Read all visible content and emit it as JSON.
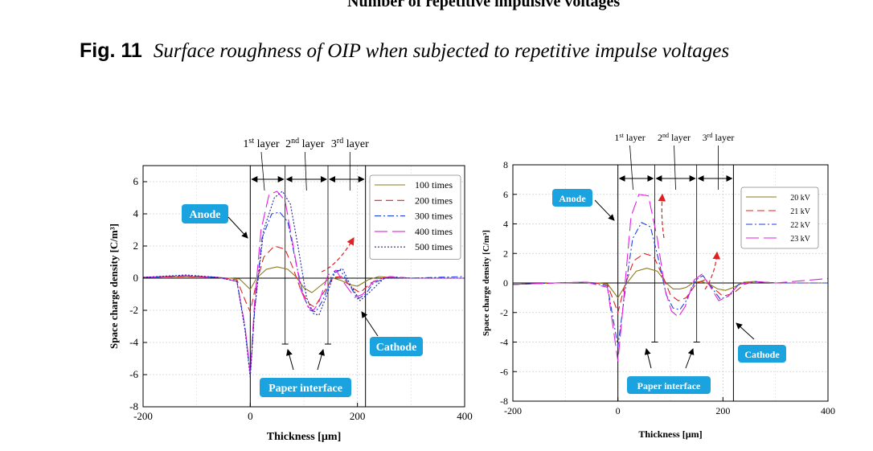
{
  "top_text": "Number of repetitive impulsive voltages",
  "caption": {
    "figure_label": "Fig. 11",
    "text": "Surface roughness of OIP when subjected to repetitive impulse voltages"
  },
  "chart_data": [
    {
      "type": "line",
      "xlabel": "Thickness [µm]",
      "ylabel": "Space charge density [C/m³]",
      "xlim": [
        -200,
        400
      ],
      "ylim": [
        -8,
        7
      ],
      "xticks": [
        -200,
        0,
        200,
        400
      ],
      "yticks": [
        -8,
        -6,
        -4,
        -2,
        0,
        2,
        4,
        6
      ],
      "grid": true,
      "legend_position": "top-right",
      "series": [
        {
          "name": "100 times",
          "color": "#8a7a1c",
          "dash": "",
          "x": [
            -200,
            -120,
            -60,
            -20,
            0,
            12,
            30,
            50,
            70,
            85,
            100,
            115,
            130,
            150,
            170,
            185,
            200,
            220,
            240,
            260,
            300,
            400
          ],
          "y": [
            0.05,
            0.1,
            0.05,
            -0.05,
            -0.7,
            0.0,
            0.55,
            0.7,
            0.55,
            0.1,
            -0.6,
            -0.9,
            -0.5,
            0.05,
            -0.15,
            -0.4,
            -0.5,
            -0.1,
            0.1,
            0.05,
            0,
            0
          ]
        },
        {
          "name": "200 times",
          "color": "#e02020",
          "dash": "9,5",
          "x": [
            -200,
            -120,
            -60,
            -25,
            -8,
            0,
            10,
            25,
            45,
            65,
            80,
            95,
            110,
            120,
            135,
            155,
            170,
            190,
            205,
            225,
            250,
            300,
            400
          ],
          "y": [
            0.05,
            0.1,
            0.05,
            -0.1,
            -1.5,
            -2.1,
            -0.5,
            1.3,
            2.0,
            1.8,
            0.6,
            -0.8,
            -1.6,
            -1.8,
            -1.0,
            0.05,
            0.1,
            -0.6,
            -0.9,
            -0.3,
            0.05,
            0,
            0
          ]
        },
        {
          "name": "300 times",
          "color": "#2040e0",
          "dash": "8,3,2,3",
          "x": [
            -200,
            -120,
            -60,
            -25,
            -10,
            0,
            8,
            22,
            40,
            55,
            70,
            85,
            100,
            112,
            122,
            135,
            155,
            168,
            185,
            200,
            215,
            230,
            260,
            300,
            400
          ],
          "y": [
            0.05,
            0.15,
            0.05,
            -0.2,
            -3.0,
            -6.0,
            -2.0,
            2.5,
            4.0,
            4.1,
            3.5,
            1.0,
            -1.2,
            -2.0,
            -2.1,
            -1.4,
            0.3,
            0.5,
            -0.4,
            -1.3,
            -1.0,
            -0.3,
            0.1,
            0,
            0.1
          ]
        },
        {
          "name": "400 times",
          "color": "#e020e0",
          "dash": "16,6",
          "x": [
            -200,
            -120,
            -60,
            -25,
            -10,
            0,
            8,
            20,
            35,
            50,
            65,
            80,
            95,
            108,
            118,
            128,
            145,
            160,
            175,
            195,
            210,
            230,
            260,
            300,
            400
          ],
          "y": [
            0.05,
            0.15,
            0.05,
            -0.2,
            -3.0,
            -5.9,
            -1.5,
            3.0,
            5.2,
            5.4,
            4.8,
            2.0,
            -0.8,
            -1.8,
            -2.0,
            -1.5,
            0.2,
            0.5,
            -0.3,
            -1.2,
            -1.0,
            -0.2,
            0.1,
            0,
            0
          ]
        },
        {
          "name": "500 times",
          "color": "#2020a0",
          "dash": "2,2",
          "x": [
            -200,
            -120,
            -60,
            -25,
            -10,
            0,
            8,
            25,
            45,
            60,
            75,
            90,
            105,
            118,
            128,
            140,
            158,
            172,
            188,
            205,
            225,
            250,
            300,
            400
          ],
          "y": [
            0.05,
            0.2,
            0.05,
            -0.2,
            -3.2,
            -6.2,
            -2.0,
            3.0,
            5.0,
            5.4,
            4.6,
            1.8,
            -1.2,
            -2.2,
            -2.3,
            -1.3,
            0.4,
            0.6,
            -0.5,
            -1.4,
            -0.8,
            0.0,
            0,
            0
          ]
        }
      ],
      "layer_labels": [
        {
          "number": "1",
          "suffix": "st",
          "text": "layer"
        },
        {
          "number": "2",
          "suffix": "nd",
          "text": "layer"
        },
        {
          "number": "3",
          "suffix": "rd",
          "text": "layer"
        }
      ],
      "layer_boundaries": [
        0,
        65,
        145,
        215
      ],
      "annotations": {
        "anode": "Anode",
        "cathode": "Cathode",
        "paper_interface": "Paper interface"
      }
    },
    {
      "type": "line",
      "xlabel": "Thickness [µm]",
      "ylabel": "Space charge density [C/m³]",
      "xlim": [
        -200,
        400
      ],
      "ylim": [
        -8,
        8
      ],
      "xticks": [
        -200,
        0,
        200,
        400
      ],
      "yticks": [
        -8,
        -6,
        -4,
        -2,
        0,
        2,
        4,
        6,
        8
      ],
      "grid": true,
      "legend_position": "top-right",
      "series": [
        {
          "name": "20 kV",
          "color": "#8a7a1c",
          "dash": "",
          "x": [
            -200,
            -120,
            -60,
            -20,
            0,
            15,
            35,
            55,
            75,
            92,
            105,
            118,
            130,
            145,
            160,
            175,
            190,
            205,
            220,
            240,
            260,
            300,
            400
          ],
          "y": [
            -0.1,
            0.0,
            0.05,
            -0.05,
            -1.0,
            -0.1,
            0.8,
            1.0,
            0.8,
            0.0,
            -0.4,
            -0.4,
            -0.3,
            0.05,
            0.1,
            -0.1,
            -0.4,
            -0.5,
            -0.3,
            0.05,
            0.1,
            0,
            0
          ]
        },
        {
          "name": "21 kV",
          "color": "#e02020",
          "dash": "9,5",
          "x": [
            -200,
            -120,
            -60,
            -20,
            0,
            12,
            30,
            50,
            68,
            85,
            100,
            115,
            130,
            150,
            165,
            180,
            200,
            220,
            240,
            260,
            300,
            400
          ],
          "y": [
            -0.1,
            0.0,
            0.05,
            -0.1,
            -2.0,
            -0.3,
            1.5,
            2.0,
            1.8,
            0.5,
            -0.8,
            -1.2,
            -1.0,
            0.0,
            0.2,
            -0.3,
            -0.9,
            -0.7,
            -0.1,
            0.1,
            0,
            0
          ]
        },
        {
          "name": "22 kV",
          "color": "#2040e0",
          "dash": "8,3,2,3",
          "x": [
            -200,
            -120,
            -60,
            -20,
            0,
            12,
            28,
            45,
            62,
            78,
            92,
            105,
            118,
            130,
            148,
            162,
            178,
            195,
            210,
            230,
            260,
            300,
            400
          ],
          "y": [
            -0.1,
            0.0,
            0.05,
            -0.2,
            -4.3,
            -1.0,
            3.0,
            4.1,
            3.8,
            1.5,
            -0.8,
            -1.7,
            -1.8,
            -1.2,
            0.2,
            0.5,
            -0.3,
            -1.1,
            -0.9,
            -0.1,
            0.1,
            0,
            0
          ]
        },
        {
          "name": "23 kV",
          "color": "#e020e0",
          "dash": "16,6",
          "x": [
            -200,
            -120,
            -60,
            -20,
            0,
            10,
            25,
            40,
            58,
            75,
            90,
            102,
            115,
            128,
            145,
            160,
            175,
            192,
            210,
            230,
            260,
            300,
            400
          ],
          "y": [
            -0.1,
            0.0,
            0.05,
            -0.3,
            -5.3,
            -1.5,
            4.5,
            6.0,
            5.9,
            3.0,
            -0.5,
            -1.9,
            -2.3,
            -1.6,
            0.2,
            0.6,
            -0.2,
            -1.2,
            -0.9,
            -0.1,
            0.1,
            0,
            0.3
          ]
        }
      ],
      "layer_labels": [
        {
          "number": "1",
          "suffix": "st",
          "text": "layer"
        },
        {
          "number": "2",
          "suffix": "nd",
          "text": "layer"
        },
        {
          "number": "3",
          "suffix": "rd",
          "text": "layer"
        }
      ],
      "layer_boundaries": [
        0,
        70,
        150,
        220
      ],
      "annotations": {
        "anode": "Anode",
        "cathode": "Cathode",
        "paper_interface": "Paper interface"
      }
    }
  ]
}
